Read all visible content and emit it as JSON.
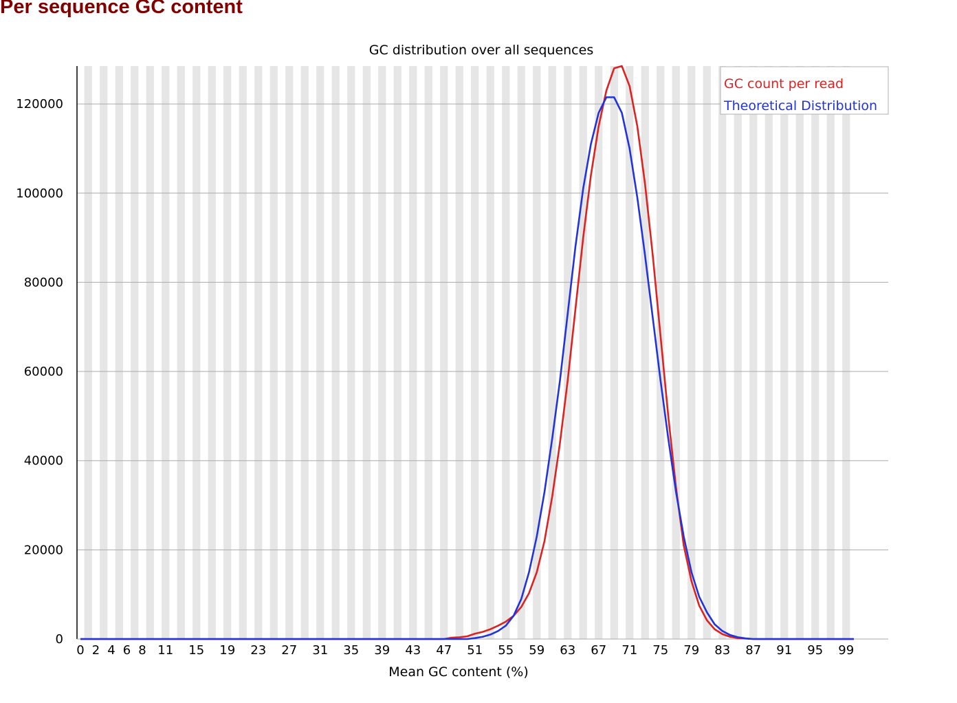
{
  "page": {
    "heading": "Per sequence GC content"
  },
  "colors": {
    "heading": "#800000",
    "observed": "#dd2222",
    "theoretical": "#2233dd",
    "stripe": "#e6e6e6",
    "grid": "#aaaaaa",
    "axis": "#000000"
  },
  "chart_data": {
    "type": "line",
    "title": "GC distribution over all sequences",
    "xlabel": "Mean GC content (%)",
    "ylabel": "",
    "xlim": [
      0,
      100
    ],
    "ylim": [
      0,
      128500
    ],
    "y_ticks": [
      0,
      20000,
      40000,
      60000,
      80000,
      100000,
      120000
    ],
    "x_tick_labels": [
      "0",
      "2",
      "4",
      "6",
      "8",
      "11",
      "15",
      "19",
      "23",
      "27",
      "31",
      "35",
      "39",
      "43",
      "47",
      "51",
      "55",
      "59",
      "63",
      "67",
      "71",
      "75",
      "79",
      "83",
      "87",
      "91",
      "95",
      "99"
    ],
    "grid": true,
    "legend_position": "top-right",
    "x": [
      0,
      1,
      2,
      3,
      4,
      5,
      6,
      7,
      8,
      9,
      10,
      11,
      12,
      13,
      14,
      15,
      16,
      17,
      18,
      19,
      20,
      21,
      22,
      23,
      24,
      25,
      26,
      27,
      28,
      29,
      30,
      31,
      32,
      33,
      34,
      35,
      36,
      37,
      38,
      39,
      40,
      41,
      42,
      43,
      44,
      45,
      46,
      47,
      48,
      49,
      50,
      51,
      52,
      53,
      54,
      55,
      56,
      57,
      58,
      59,
      60,
      61,
      62,
      63,
      64,
      65,
      66,
      67,
      68,
      69,
      70,
      71,
      72,
      73,
      74,
      75,
      76,
      77,
      78,
      79,
      80,
      81,
      82,
      83,
      84,
      85,
      86,
      87,
      88,
      89,
      90,
      91,
      92,
      93,
      94,
      95,
      96,
      97,
      98,
      99,
      100
    ],
    "series": [
      {
        "name": "GC count per read",
        "color": "#dd2222",
        "values": [
          0,
          0,
          0,
          0,
          0,
          0,
          0,
          0,
          0,
          0,
          0,
          0,
          0,
          0,
          0,
          0,
          0,
          0,
          0,
          0,
          0,
          0,
          0,
          0,
          0,
          0,
          0,
          0,
          0,
          0,
          0,
          0,
          0,
          0,
          0,
          0,
          0,
          0,
          0,
          0,
          0,
          0,
          0,
          0,
          0,
          0,
          0,
          0,
          300,
          400,
          600,
          1200,
          1600,
          2200,
          3000,
          3900,
          5200,
          7200,
          10300,
          15000,
          22000,
          32000,
          44000,
          58000,
          74000,
          90000,
          104000,
          115000,
          123000,
          128000,
          128500,
          124000,
          115000,
          102000,
          86000,
          68000,
          50000,
          34000,
          21000,
          13000,
          7500,
          4200,
          2200,
          1100,
          500,
          200,
          100,
          0,
          0,
          0,
          0,
          0,
          0,
          0,
          0,
          0,
          0,
          0,
          0,
          0,
          0
        ]
      },
      {
        "name": "Theoretical Distribution",
        "color": "#2233dd",
        "values": [
          0,
          0,
          0,
          0,
          0,
          0,
          0,
          0,
          0,
          0,
          0,
          0,
          0,
          0,
          0,
          0,
          0,
          0,
          0,
          0,
          0,
          0,
          0,
          0,
          0,
          0,
          0,
          0,
          0,
          0,
          0,
          0,
          0,
          0,
          0,
          0,
          0,
          0,
          0,
          0,
          0,
          0,
          0,
          0,
          0,
          0,
          0,
          0,
          0,
          0,
          0,
          200,
          500,
          1000,
          1800,
          3000,
          5200,
          9000,
          15000,
          23000,
          33000,
          45000,
          58000,
          73000,
          88000,
          101000,
          111000,
          118000,
          121500,
          121500,
          118000,
          110000,
          99000,
          86000,
          72000,
          58000,
          45000,
          33000,
          23000,
          15000,
          9500,
          6000,
          3300,
          1800,
          900,
          400,
          150,
          0,
          0,
          0,
          0,
          0,
          0,
          0,
          0,
          0,
          0,
          0,
          0,
          0,
          0
        ]
      }
    ]
  }
}
